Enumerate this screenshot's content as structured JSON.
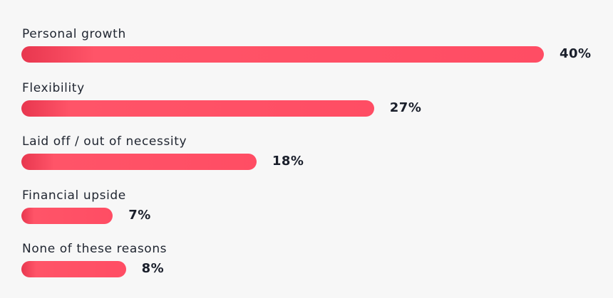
{
  "chart_data": {
    "type": "bar",
    "orientation": "horizontal",
    "categories": [
      "Personal growth",
      "Flexibility",
      "Laid off / out of necessity",
      "Financial upside",
      "None of these reasons"
    ],
    "values": [
      40,
      27,
      18,
      7,
      8
    ],
    "value_labels": [
      "40%",
      "27%",
      "18%",
      "7%",
      "8%"
    ],
    "unit": "%",
    "xlim": [
      0,
      40
    ],
    "bar_color": "#ff4d64",
    "bar_color_start": "#e8374f",
    "text_color": "#1f2530",
    "background": "#f7f7f7",
    "grid": false,
    "legend": "none"
  }
}
